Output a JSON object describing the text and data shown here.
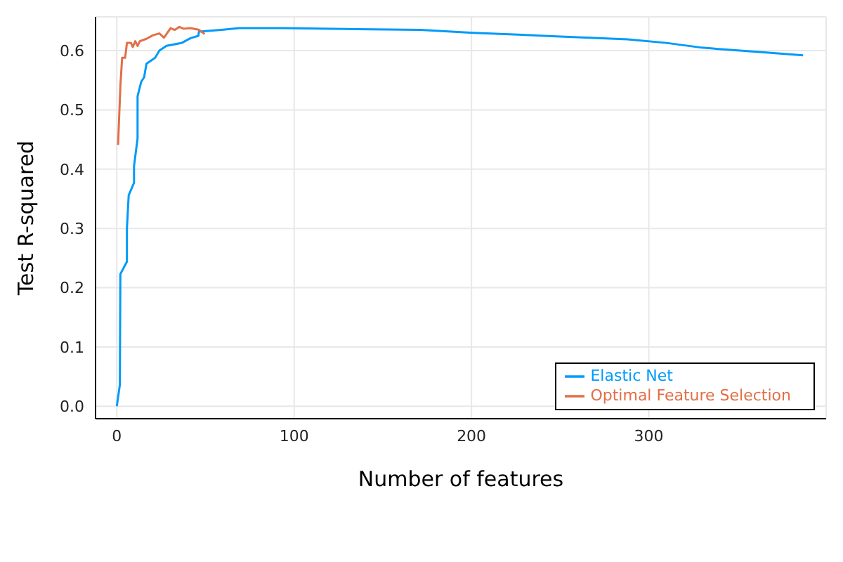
{
  "chart_data": {
    "type": "line",
    "xlabel": "Number of features",
    "ylabel": "Test R-squared",
    "xlim": [
      -12,
      400
    ],
    "ylim": [
      -0.021,
      0.657
    ],
    "xticks": [
      0,
      100,
      200,
      300
    ],
    "yticks": [
      {
        "value": 0,
        "label": "0.0"
      },
      {
        "value": 0.1,
        "label": "0.1"
      },
      {
        "value": 0.2,
        "label": "0.2"
      },
      {
        "value": 0.3,
        "label": "0.3"
      },
      {
        "value": 0.4,
        "label": "0.4"
      },
      {
        "value": 0.5,
        "label": "0.5"
      },
      {
        "value": 0.6,
        "label": "0.6"
      }
    ],
    "grid": true,
    "legend": "bottom right",
    "marker": "none",
    "line_style": "solid",
    "series": [
      {
        "name": "Elastic Net",
        "color": "#009af9",
        "x": [
          0,
          1.7,
          2,
          5.7,
          5.7,
          6.7,
          9.7,
          9.7,
          11.7,
          11.7,
          13.7,
          15.4,
          16.7,
          21.6,
          24,
          28,
          36.6,
          41.5,
          46,
          46.3,
          59,
          69,
          94,
          171,
          201,
          226,
          288,
          310,
          330,
          365,
          387
        ],
        "values": [
          0,
          0.036,
          0.223,
          0.244,
          0.3,
          0.356,
          0.377,
          0.405,
          0.452,
          0.523,
          0.547,
          0.555,
          0.578,
          0.588,
          0.6,
          0.608,
          0.613,
          0.621,
          0.625,
          0.632,
          0.635,
          0.638,
          0.638,
          0.635,
          0.63,
          0.627,
          0.619,
          0.613,
          0.605,
          0.597,
          0.592
        ]
      },
      {
        "name": "Optimal Feature Selection",
        "color": "#e26f46",
        "x": [
          0.7,
          2,
          3,
          4.7,
          5.7,
          8,
          9,
          10.4,
          11.7,
          13,
          16.7,
          20.4,
          24,
          26.6,
          30.3,
          32.7,
          35.3,
          37.7,
          41.5,
          46.5,
          49.5
        ],
        "values": [
          0.441,
          0.54,
          0.588,
          0.588,
          0.613,
          0.613,
          0.606,
          0.616,
          0.608,
          0.616,
          0.62,
          0.626,
          0.629,
          0.622,
          0.638,
          0.635,
          0.64,
          0.637,
          0.638,
          0.635,
          0.628
        ]
      }
    ]
  }
}
